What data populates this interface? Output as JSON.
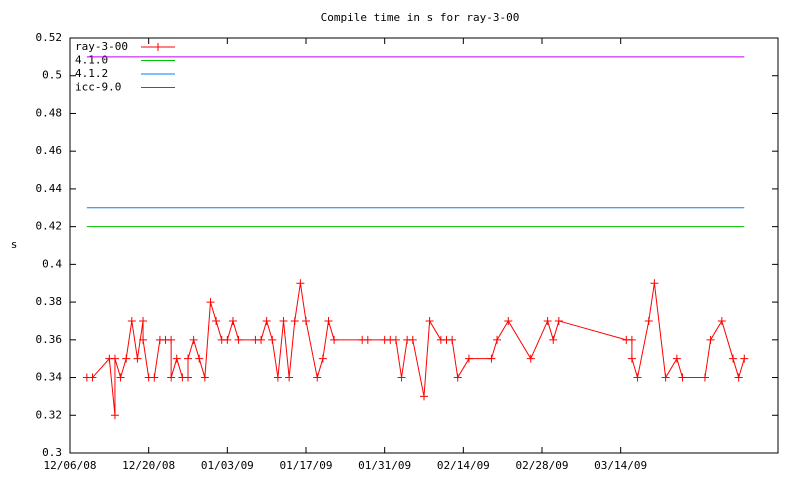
{
  "chart_data": {
    "type": "line",
    "title": "Compile time in s for ray-3-00",
    "y_label": "s",
    "xlim": [
      "12/06/08",
      "04/11/09"
    ],
    "xticks": [
      "12/06/08",
      "12/20/08",
      "01/03/09",
      "01/17/09",
      "01/31/09",
      "02/14/09",
      "02/28/09",
      "03/14/09"
    ],
    "ylim": [
      0.3,
      0.52
    ],
    "yticks": [
      0.3,
      0.32,
      0.34,
      0.36,
      0.38,
      0.4,
      0.42,
      0.44,
      0.46,
      0.48,
      0.5,
      0.52
    ],
    "grid": false,
    "legend": "top-left",
    "series": [
      {
        "name": "ray-3-00",
        "color": "#ff0000",
        "markers": true,
        "x": [
          "12/09/08",
          "12/10/08",
          "12/13/08",
          "12/14/08",
          "12/14/08",
          "12/15/08",
          "12/16/08",
          "12/17/08",
          "12/18/08",
          "12/19/08",
          "12/19/08",
          "12/20/08",
          "12/21/08",
          "12/22/08",
          "12/23/08",
          "12/24/08",
          "12/24/08",
          "12/25/08",
          "12/26/08",
          "12/27/08",
          "12/27/08",
          "12/28/08",
          "12/29/08",
          "12/30/08",
          "12/31/08",
          "01/01/09",
          "01/02/09",
          "01/03/09",
          "01/04/09",
          "01/05/09",
          "01/08/09",
          "01/09/09",
          "01/10/09",
          "01/11/09",
          "01/12/09",
          "01/13/09",
          "01/14/09",
          "01/15/09",
          "01/16/09",
          "01/17/09",
          "01/19/09",
          "01/20/09",
          "01/21/09",
          "01/22/09",
          "01/27/09",
          "01/28/09",
          "01/31/09",
          "02/01/09",
          "02/02/09",
          "02/03/09",
          "02/04/09",
          "02/05/09",
          "02/07/09",
          "02/08/09",
          "02/10/09",
          "02/11/09",
          "02/12/09",
          "02/13/09",
          "02/15/09",
          "02/19/09",
          "02/20/09",
          "02/22/09",
          "02/26/09",
          "03/01/09",
          "03/02/09",
          "03/03/09",
          "03/15/09",
          "03/16/09",
          "03/16/09",
          "03/17/09",
          "03/19/09",
          "03/20/09",
          "03/22/09",
          "03/24/09",
          "03/25/09",
          "03/29/09",
          "03/30/09",
          "04/01/09",
          "04/03/09",
          "04/04/09",
          "04/05/09"
        ],
        "values": [
          0.34,
          0.34,
          0.35,
          0.32,
          0.35,
          0.34,
          0.35,
          0.37,
          0.35,
          0.37,
          0.36,
          0.34,
          0.34,
          0.36,
          0.36,
          0.36,
          0.34,
          0.35,
          0.34,
          0.34,
          0.35,
          0.36,
          0.35,
          0.34,
          0.38,
          0.37,
          0.36,
          0.36,
          0.37,
          0.36,
          0.36,
          0.36,
          0.37,
          0.36,
          0.34,
          0.37,
          0.34,
          0.37,
          0.39,
          0.37,
          0.34,
          0.35,
          0.37,
          0.36,
          0.36,
          0.36,
          0.36,
          0.36,
          0.36,
          0.34,
          0.36,
          0.36,
          0.33,
          0.37,
          0.36,
          0.36,
          0.36,
          0.34,
          0.35,
          0.35,
          0.36,
          0.37,
          0.35,
          0.37,
          0.36,
          0.37,
          0.36,
          0.36,
          0.35,
          0.34,
          0.37,
          0.39,
          0.34,
          0.35,
          0.34,
          0.34,
          0.36,
          0.37,
          0.35,
          0.34,
          0.35
        ]
      },
      {
        "name": "4.1.0",
        "color": "#00c000",
        "x": [
          "12/09/08",
          "04/05/09"
        ],
        "values": [
          0.42,
          0.42
        ]
      },
      {
        "name": "4.1.2",
        "color": "#0080ff",
        "x": [
          "12/09/08",
          "04/05/09"
        ],
        "values": [
          0.43,
          0.43
        ]
      },
      {
        "name": "icc-9.0",
        "color": "#c000ff",
        "x": [
          "12/09/08",
          "04/05/09"
        ],
        "values": [
          0.51,
          0.51
        ]
      }
    ]
  }
}
